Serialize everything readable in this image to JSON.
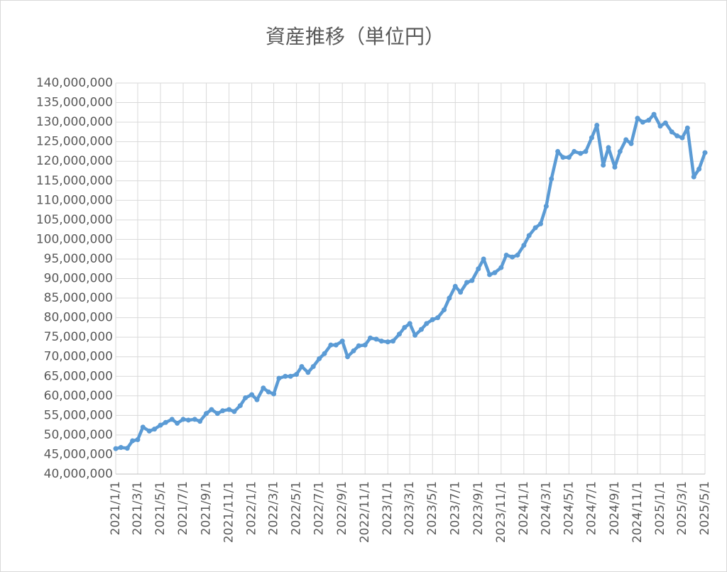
{
  "chart_data": {
    "type": "line",
    "title": "資産推移（単位円）",
    "x": [
      "2021/1/1",
      "2021/1/15",
      "2021/2/1",
      "2021/2/15",
      "2021/3/1",
      "2021/3/15",
      "2021/4/1",
      "2021/4/15",
      "2021/5/1",
      "2021/5/15",
      "2021/6/1",
      "2021/6/15",
      "2021/7/1",
      "2021/7/15",
      "2021/8/1",
      "2021/8/15",
      "2021/9/1",
      "2021/9/15",
      "2021/10/1",
      "2021/10/15",
      "2021/11/1",
      "2021/11/15",
      "2021/12/1",
      "2021/12/15",
      "2022/1/1",
      "2022/1/15",
      "2022/2/1",
      "2022/2/15",
      "2022/3/1",
      "2022/3/15",
      "2022/4/1",
      "2022/4/15",
      "2022/5/1",
      "2022/5/15",
      "2022/6/1",
      "2022/6/15",
      "2022/7/1",
      "2022/7/15",
      "2022/8/1",
      "2022/8/15",
      "2022/9/1",
      "2022/9/15",
      "2022/10/1",
      "2022/10/15",
      "2022/11/1",
      "2022/11/15",
      "2022/12/1",
      "2022/12/15",
      "2023/1/1",
      "2023/1/15",
      "2023/2/1",
      "2023/2/15",
      "2023/3/1",
      "2023/3/15",
      "2023/4/1",
      "2023/4/15",
      "2023/5/1",
      "2023/5/15",
      "2023/6/1",
      "2023/6/15",
      "2023/7/1",
      "2023/7/15",
      "2023/8/1",
      "2023/8/15",
      "2023/9/1",
      "2023/9/15",
      "2023/10/1",
      "2023/10/15",
      "2023/11/1",
      "2023/11/15",
      "2023/12/1",
      "2023/12/15",
      "2024/1/1",
      "2024/1/15",
      "2024/2/1",
      "2024/2/15",
      "2024/3/1",
      "2024/3/15",
      "2024/4/1",
      "2024/4/15",
      "2024/5/1",
      "2024/5/15",
      "2024/6/1",
      "2024/6/15",
      "2024/7/1",
      "2024/7/15",
      "2024/8/1",
      "2024/8/15",
      "2024/9/1",
      "2024/9/15",
      "2024/10/1",
      "2024/10/15",
      "2024/11/1",
      "2024/11/15",
      "2024/12/1",
      "2024/12/15",
      "2025/1/1",
      "2025/1/15",
      "2025/2/1",
      "2025/2/15",
      "2025/3/1",
      "2025/3/15",
      "2025/4/1",
      "2025/4/15",
      "2025/5/1"
    ],
    "series": [
      {
        "name": "資産",
        "color": "#5b9bd5",
        "values": [
          46500000,
          46800000,
          46600000,
          48500000,
          48800000,
          52000000,
          51000000,
          51500000,
          52500000,
          53200000,
          54000000,
          53000000,
          54000000,
          53800000,
          54000000,
          53500000,
          55500000,
          56500000,
          55500000,
          56200000,
          56500000,
          56000000,
          57500000,
          59500000,
          60300000,
          59000000,
          62000000,
          61000000,
          60500000,
          64500000,
          65000000,
          65000000,
          65500000,
          67500000,
          66000000,
          67500000,
          69500000,
          70800000,
          73000000,
          73000000,
          74000000,
          70000000,
          71500000,
          72800000,
          73000000,
          74800000,
          74500000,
          74000000,
          73800000,
          74000000,
          75800000,
          77500000,
          78500000,
          75500000,
          77000000,
          78500000,
          79500000,
          80000000,
          82000000,
          85000000,
          88000000,
          86500000,
          89000000,
          89500000,
          92500000,
          95000000,
          91000000,
          91500000,
          92800000,
          96000000,
          95500000,
          96000000,
          98500000,
          101000000,
          103000000,
          104000000,
          108500000,
          115500000,
          122500000,
          121000000,
          121000000,
          122500000,
          122000000,
          122500000,
          126000000,
          129200000,
          119000000,
          123500000,
          118500000,
          122500000,
          125500000,
          124500000,
          131000000,
          130000000,
          130500000,
          132000000,
          129000000,
          129800000,
          127500000,
          126500000,
          126000000,
          128500000,
          116000000,
          118000000,
          122200000
        ]
      }
    ],
    "xlim": [
      "2021/1/1",
      "2025/5/1"
    ],
    "xticks": [
      "2021/1/1",
      "2021/3/1",
      "2021/5/1",
      "2021/7/1",
      "2021/9/1",
      "2021/11/1",
      "2022/1/1",
      "2022/3/1",
      "2022/5/1",
      "2022/7/1",
      "2022/9/1",
      "2022/11/1",
      "2023/1/1",
      "2023/3/1",
      "2023/5/1",
      "2023/7/1",
      "2023/9/1",
      "2023/11/1",
      "2024/1/1",
      "2024/3/1",
      "2024/5/1",
      "2024/7/1",
      "2024/9/1",
      "2024/11/1",
      "2025/1/1",
      "2025/3/1",
      "2025/5/1"
    ],
    "ylim": [
      40000000,
      140000000
    ],
    "yticks": [
      {
        "value": 40000000,
        "label": "40,000,000"
      },
      {
        "value": 45000000,
        "label": "45,000,000"
      },
      {
        "value": 50000000,
        "label": "50,000,000"
      },
      {
        "value": 55000000,
        "label": "55,000,000"
      },
      {
        "value": 60000000,
        "label": "60,000,000"
      },
      {
        "value": 65000000,
        "label": "65,000,000"
      },
      {
        "value": 70000000,
        "label": "70,000,000"
      },
      {
        "value": 75000000,
        "label": "75,000,000"
      },
      {
        "value": 80000000,
        "label": "80,000,000"
      },
      {
        "value": 85000000,
        "label": "85,000,000"
      },
      {
        "value": 90000000,
        "label": "90,000,000"
      },
      {
        "value": 95000000,
        "label": "95,000,000"
      },
      {
        "value": 100000000,
        "label": "100,000,000"
      },
      {
        "value": 105000000,
        "label": "105,000,000"
      },
      {
        "value": 110000000,
        "label": "110,000,000"
      },
      {
        "value": 115000000,
        "label": "115,000,000"
      },
      {
        "value": 120000000,
        "label": "120,000,000"
      },
      {
        "value": 125000000,
        "label": "125,000,000"
      },
      {
        "value": 130000000,
        "label": "130,000,000"
      },
      {
        "value": 135000000,
        "label": "135,000,000"
      },
      {
        "value": 140000000,
        "label": "140,000,000"
      }
    ],
    "grid": true
  }
}
